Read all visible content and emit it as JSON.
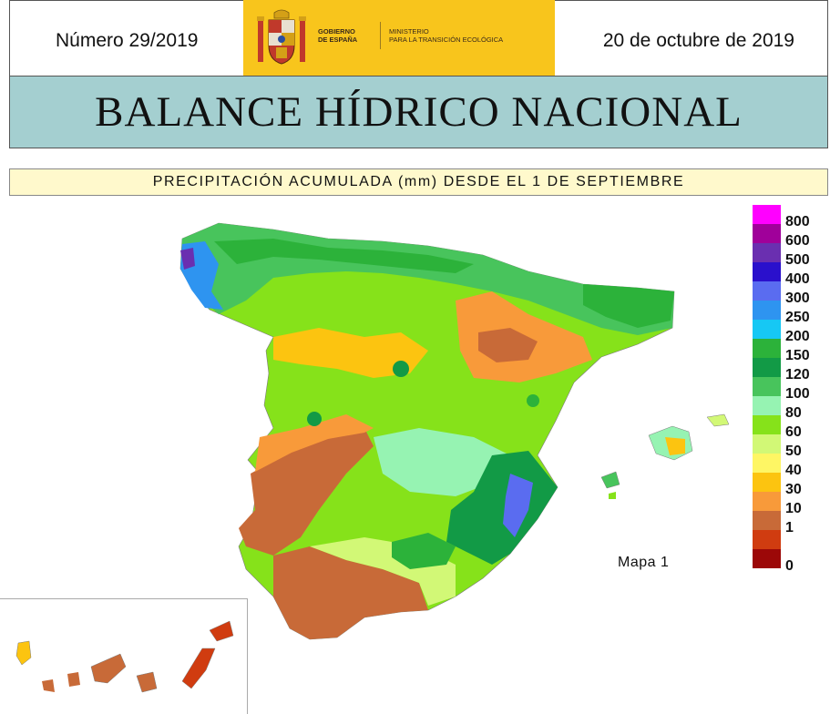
{
  "header": {
    "issue": "Número 29/2019",
    "date": "20 de octubre de 2019",
    "logo_government_lines": [
      "GOBIERNO",
      "DE ESPAÑA"
    ],
    "logo_ministry_lines": [
      "MINISTERIO",
      "PARA LA TRANSICIÓN ECOLÓGICA"
    ],
    "logo_color": "#f8c51c"
  },
  "title": "BALANCE HÍDRICO NACIONAL",
  "subtitle": "PRECIPITACIÓN ACUMULADA (mm) DESDE EL 1 DE SEPTIEMBRE",
  "map": {
    "label": "Mapa 1",
    "regions_shown": [
      "Península Ibérica",
      "Islas Baleares",
      "Islas Canarias"
    ]
  },
  "legend": {
    "unit": "mm",
    "items": [
      {
        "value": "800",
        "color": "#ff00ff"
      },
      {
        "value": "600",
        "color": "#a0009a"
      },
      {
        "value": "500",
        "color": "#6a2fb0"
      },
      {
        "value": "400",
        "color": "#2a10cc"
      },
      {
        "value": "300",
        "color": "#5a6cf0"
      },
      {
        "value": "250",
        "color": "#2e94f0"
      },
      {
        "value": "200",
        "color": "#16c8f4"
      },
      {
        "value": "150",
        "color": "#2cb23a"
      },
      {
        "value": "120",
        "color": "#129a46"
      },
      {
        "value": "100",
        "color": "#48c45c"
      },
      {
        "value": "80",
        "color": "#96f3b2"
      },
      {
        "value": "60",
        "color": "#86e21a"
      },
      {
        "value": "50",
        "color": "#d2f876"
      },
      {
        "value": "40",
        "color": "#fef664"
      },
      {
        "value": "30",
        "color": "#fcc410"
      },
      {
        "value": "10",
        "color": "#f89a3a"
      },
      {
        "value": "1",
        "color": "#c86a38"
      },
      {
        "value": "",
        "color": "#d03c10"
      },
      {
        "value": "0",
        "color": "#9c0808"
      }
    ]
  }
}
